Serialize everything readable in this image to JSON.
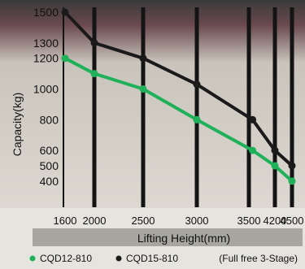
{
  "chart_data": {
    "type": "line",
    "xlabel": "Lifting Height(mm)",
    "ylabel": "Capacity(kg)",
    "x_ticks": [
      1600,
      2000,
      2500,
      3000,
      3500,
      4200,
      4500
    ],
    "y_ticks": [
      400,
      500,
      600,
      800,
      1000,
      1200,
      1300,
      1500
    ],
    "xlim": [
      1600,
      4500
    ],
    "ylim": [
      230,
      1500
    ],
    "grid": "vertical",
    "legend_placement": "bottom",
    "series": [
      {
        "name": "CQD12-810",
        "color": "#1fb05a",
        "points": [
          [
            1600,
            1200
          ],
          [
            2000,
            1100
          ],
          [
            2500,
            1000
          ],
          [
            3000,
            800
          ],
          [
            3600,
            600
          ],
          [
            4200,
            500
          ],
          [
            4500,
            400
          ]
        ]
      },
      {
        "name": "CQD15-810",
        "color": "#1a1a1a",
        "points": [
          [
            1600,
            1500
          ],
          [
            2000,
            1300
          ],
          [
            2500,
            1200
          ],
          [
            3000,
            1030
          ],
          [
            3600,
            800
          ],
          [
            4200,
            600
          ],
          [
            4500,
            500
          ]
        ]
      }
    ],
    "annotation": "(Full free 3-Stage)"
  }
}
